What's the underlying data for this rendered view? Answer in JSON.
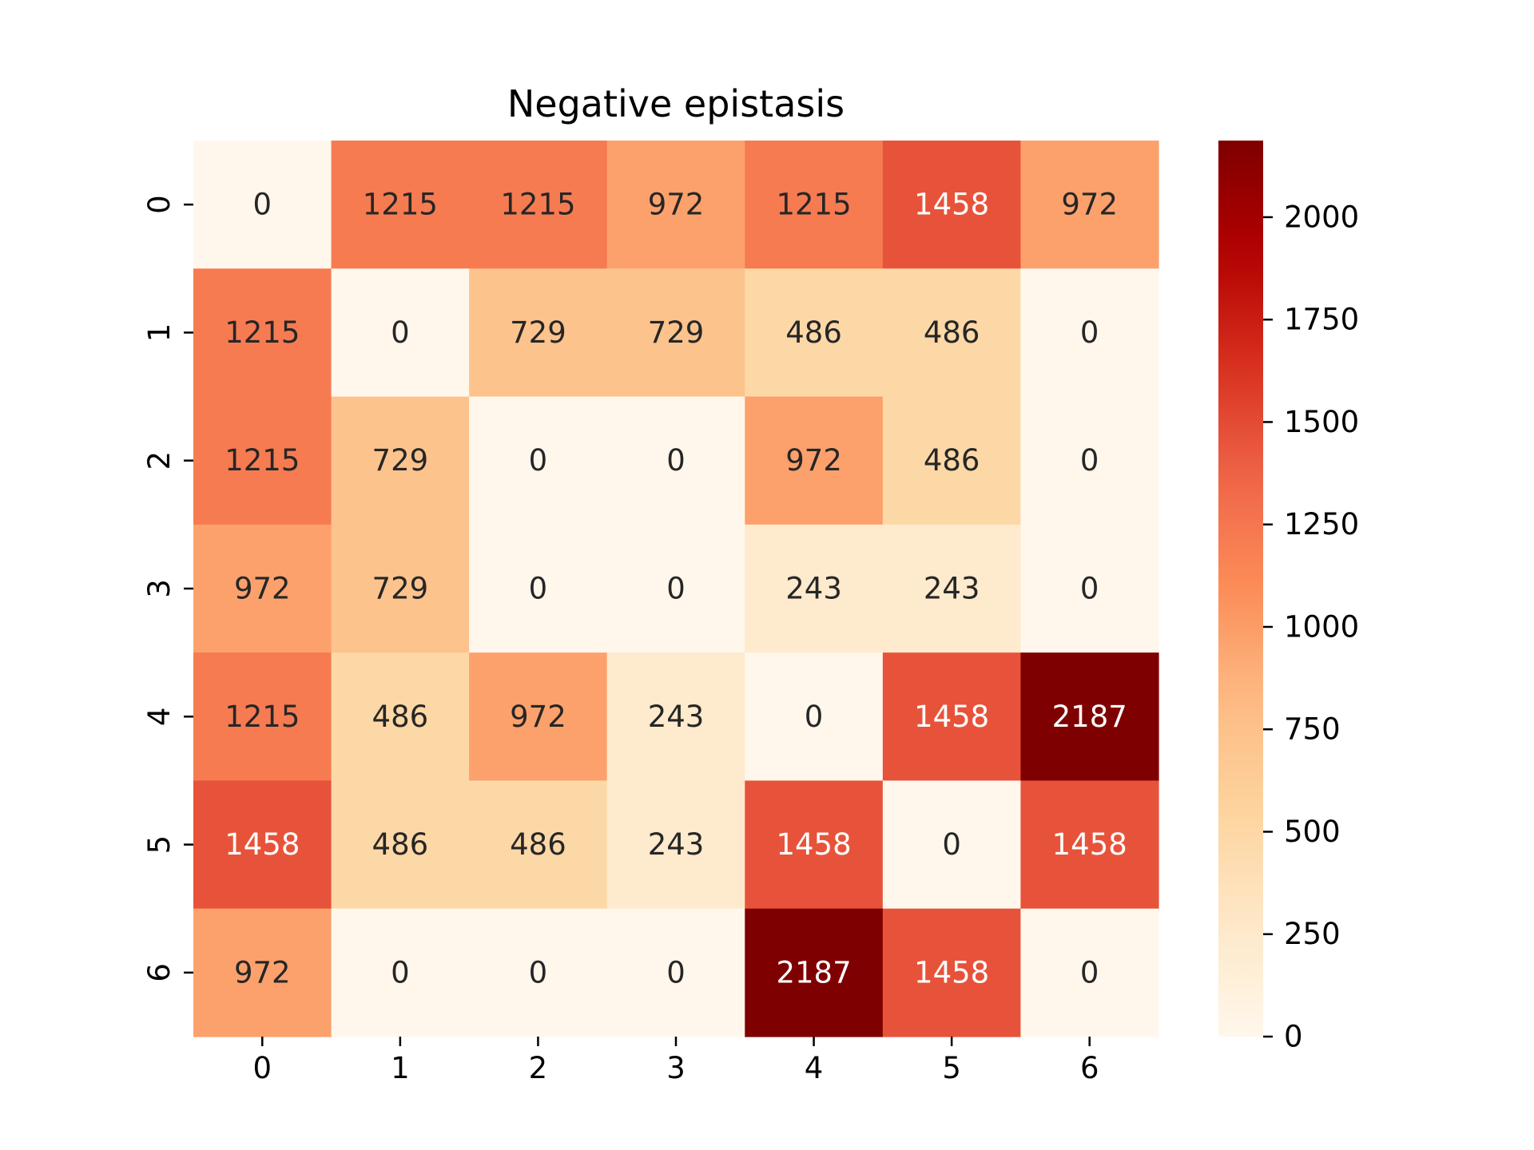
{
  "chart_data": {
    "type": "heatmap",
    "title": "Negative epistasis",
    "xlabel": "",
    "ylabel": "",
    "x_categories": [
      "0",
      "1",
      "2",
      "3",
      "4",
      "5",
      "6"
    ],
    "y_categories": [
      "0",
      "1",
      "2",
      "3",
      "4",
      "5",
      "6"
    ],
    "values": [
      [
        0,
        1215,
        1215,
        972,
        1215,
        1458,
        972
      ],
      [
        1215,
        0,
        729,
        729,
        486,
        486,
        0
      ],
      [
        1215,
        729,
        0,
        0,
        972,
        486,
        0
      ],
      [
        972,
        729,
        0,
        0,
        243,
        243,
        0
      ],
      [
        1215,
        486,
        972,
        243,
        0,
        1458,
        2187
      ],
      [
        1458,
        486,
        486,
        243,
        1458,
        0,
        1458
      ],
      [
        972,
        0,
        0,
        0,
        2187,
        1458,
        0
      ]
    ],
    "colormap": "OrRd",
    "vmin": 0,
    "vmax": 2187,
    "colorbar_ticks": [
      "0",
      "250",
      "500",
      "750",
      "1000",
      "1250",
      "1500",
      "1750",
      "2000"
    ],
    "colorbar_tick_values": [
      0,
      250,
      500,
      750,
      1000,
      1250,
      1500,
      1750,
      2000
    ],
    "annot_light_color": "#ffffff",
    "annot_dark_color": "#262626"
  }
}
